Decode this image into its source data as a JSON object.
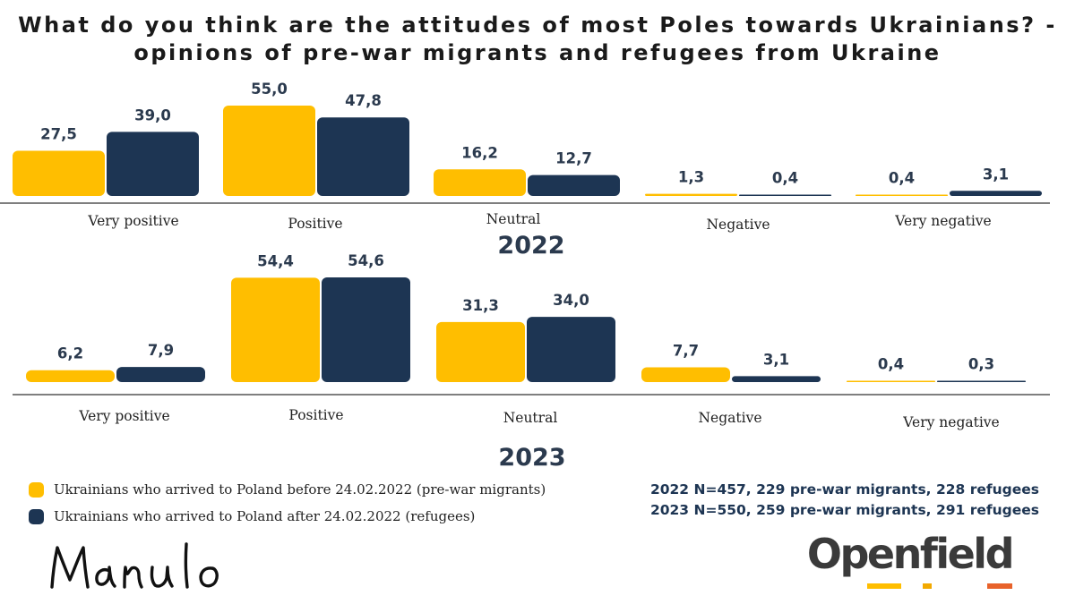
{
  "title": {
    "line1": "What do you think are the attitudes of most Poles towards Ukrainians? -",
    "line2": "opinions of pre-war migrants and refugees from Ukraine"
  },
  "colors": {
    "pre_war": "#FFBE00",
    "refugees": "#1D3553",
    "axis": "#333333",
    "label": "#2b3a4e"
  },
  "chart_data": [
    {
      "type": "bar",
      "title": "2022",
      "categories": [
        "Very positive",
        "Positive",
        "Neutral",
        "Negative",
        "Very negative"
      ],
      "series": [
        {
          "name": "Ukrainians who arrived to Poland before 24.02.2022 (pre-war migrants)",
          "values": [
            27.5,
            55.0,
            16.2,
            1.3,
            0.4
          ],
          "labels": [
            "27,5",
            "55,0",
            "16,2",
            "1,3",
            "0,4"
          ]
        },
        {
          "name": "Ukrainians who arrived to Poland after 24.02.2022 (refugees)",
          "values": [
            39.0,
            47.8,
            12.7,
            0.4,
            3.1
          ],
          "labels": [
            "39,0",
            "47,8",
            "12,7",
            "0,4",
            "3,1"
          ]
        }
      ],
      "ylim": [
        0,
        55
      ]
    },
    {
      "type": "bar",
      "title": "2023",
      "categories": [
        "Very positive",
        "Positive",
        "Neutral",
        "Negative",
        "Very negative"
      ],
      "series": [
        {
          "name": "Ukrainians who arrived to Poland before 24.02.2022 (pre-war migrants)",
          "values": [
            6.2,
            54.4,
            31.3,
            7.7,
            0.4
          ],
          "labels": [
            "6,2",
            "54,4",
            "31,3",
            "7,7",
            "0,4"
          ]
        },
        {
          "name": "Ukrainians who arrived to Poland after 24.02.2022 (refugees)",
          "values": [
            7.9,
            54.6,
            34.0,
            3.1,
            0.3
          ],
          "labels": [
            "7,9",
            "54,6",
            "34,0",
            "3,1",
            "0,3"
          ]
        }
      ],
      "ylim": [
        0,
        55
      ]
    }
  ],
  "legend": [
    {
      "label": "Ukrainians who arrived to Poland before 24.02.2022 (pre-war migrants)",
      "color": "#FFBE00"
    },
    {
      "label": "Ukrainians who arrived to Poland after 24.02.2022 (refugees)",
      "color": "#1D3553"
    }
  ],
  "notes": {
    "n2022": "2022 N=457, 229 pre-war migrants, 228 refugees",
    "n2023": "2023 N=550, 259 pre-war migrants, 291 refugees"
  },
  "logos": {
    "manulo": "Manulo",
    "openfield": "Openfield"
  }
}
